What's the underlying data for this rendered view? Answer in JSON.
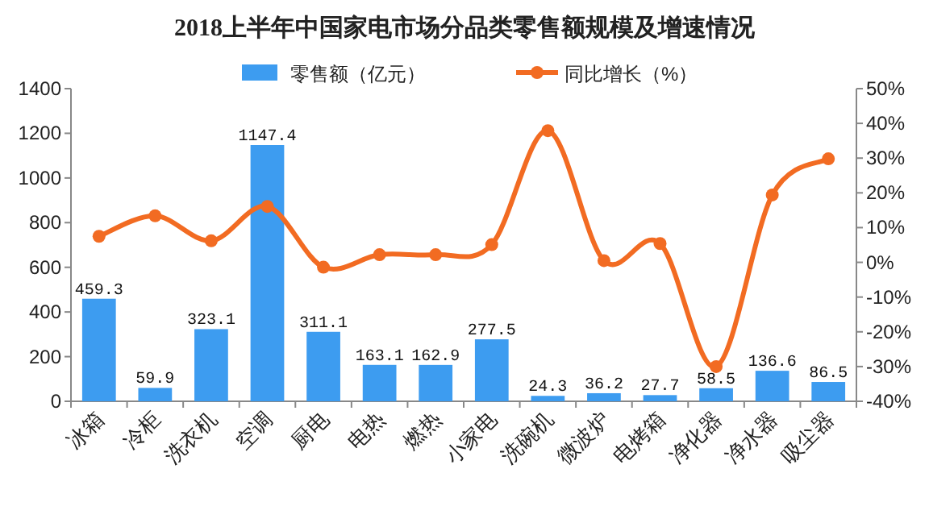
{
  "chart_data": {
    "type": "bar",
    "title": "2018上半年中国家电市场分品类零售额规模及增速情况",
    "categories": [
      "冰箱",
      "冷柜",
      "洗衣机",
      "空调",
      "厨电",
      "电热",
      "燃热",
      "小家电",
      "洗碗机",
      "微波炉",
      "电烤箱",
      "净化器",
      "净水器",
      "吸尘器"
    ],
    "series": [
      {
        "name": "零售额（亿元）",
        "color": "#3d9cf0",
        "values": [
          459.3,
          59.9,
          323.1,
          1147.4,
          311.1,
          163.1,
          162.9,
          277.5,
          24.3,
          36.2,
          27.7,
          58.5,
          136.6,
          86.5
        ],
        "value_labels": [
          "459.3",
          "59.9",
          "323.1",
          "1147.4",
          "311.1",
          "163.1",
          "162.9",
          "277.5",
          "24.3",
          "36.2",
          "27.7",
          "58.5",
          "136.6",
          "86.5"
        ]
      },
      {
        "name": "同比增长（%）",
        "type": "line",
        "axis": "y2",
        "color": "#f26b22",
        "marker": "circle",
        "values": [
          7.5,
          13.4,
          6.2,
          16.1,
          -1.4,
          2.2,
          2.2,
          5.1,
          37.9,
          0.5,
          5.4,
          -30.0,
          19.4,
          29.8
        ]
      }
    ],
    "ylim": [
      0,
      1400
    ],
    "yticks": [
      0,
      200,
      400,
      600,
      800,
      1000,
      1200,
      1400
    ],
    "y2lim": [
      -40,
      50
    ],
    "y2ticks": [
      {
        "value": -40,
        "label": "-40%"
      },
      {
        "value": -30,
        "label": "-30%"
      },
      {
        "value": -20,
        "label": "-20%"
      },
      {
        "value": -10,
        "label": "-10%"
      },
      {
        "value": 0,
        "label": "0%"
      },
      {
        "value": 10,
        "label": "10%"
      },
      {
        "value": 20,
        "label": "20%"
      },
      {
        "value": 30,
        "label": "30%"
      },
      {
        "value": 40,
        "label": "40%"
      },
      {
        "value": 50,
        "label": "50%"
      }
    ],
    "legend": "top",
    "grid": false
  }
}
